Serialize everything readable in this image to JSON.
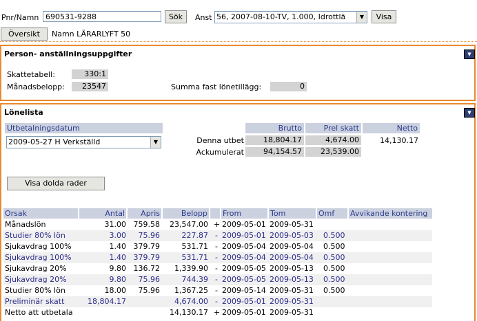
{
  "header": {
    "pnr_label": "Pnr/Namn",
    "pnr_value": "690531-9288",
    "search_button": "Sök",
    "anst_label": "Anst",
    "anst_value": "56, 2007-08-10-TV, 1.000, Idrottlä",
    "show_button": "Visa",
    "overview_button": "Översikt",
    "name_text": "Namn LÄRARLYFT 50"
  },
  "person_panel": {
    "title": "Person- anställningsuppgifter",
    "tax_table_label": "Skattetabell:",
    "tax_table_value": "330:1",
    "monthly_label": "Månadsbelopp:",
    "monthly_value": "23547",
    "fixed_label": "Summa fast lönetillägg:",
    "fixed_value": "0"
  },
  "payslip": {
    "title": "Lönelista",
    "date_header": "Utbetalningsdatum",
    "date_value": "2009-05-27 H Verkställd",
    "summary_headers": [
      "Brutto",
      "Prel skatt",
      "Netto"
    ],
    "summary_rows": [
      {
        "label": "Denna utbet",
        "brutto": "18,804.17",
        "prel": "4,674.00",
        "netto": "14,130.17"
      },
      {
        "label": "Ackumulerat",
        "brutto": "94,154.57",
        "prel": "23,539.00",
        "netto": ""
      }
    ],
    "hidden_rows_button": "Visa dolda rader",
    "columns": [
      "Orsak",
      "Antal",
      "Apris",
      "Belopp",
      "",
      "From",
      "Tom",
      "Omf",
      "Avvikande kontering"
    ],
    "rows": [
      {
        "orsak": "Månadslön",
        "antal": "31.00",
        "apris": "759.58",
        "belopp": "23,547.00",
        "sign": "+",
        "from": "2009-05-01",
        "tom": "2009-05-31",
        "omf": ""
      },
      {
        "orsak": "Studier 80% lön",
        "antal": "3.00",
        "apris": "75.96",
        "belopp": "227.87",
        "sign": "-",
        "from": "2009-05-01",
        "tom": "2009-05-03",
        "omf": "0.500"
      },
      {
        "orsak": "Sjukavdrag 100%",
        "antal": "1.40",
        "apris": "379.79",
        "belopp": "531.71",
        "sign": "-",
        "from": "2009-05-04",
        "tom": "2009-05-04",
        "omf": "0.500"
      },
      {
        "orsak": "Sjukavdrag 100%",
        "antal": "1.40",
        "apris": "379.79",
        "belopp": "531.71",
        "sign": "-",
        "from": "2009-05-04",
        "tom": "2009-05-04",
        "omf": "0.500"
      },
      {
        "orsak": "Sjukavdrag 20%",
        "antal": "9.80",
        "apris": "136.72",
        "belopp": "1,339.90",
        "sign": "-",
        "from": "2009-05-05",
        "tom": "2009-05-13",
        "omf": "0.500"
      },
      {
        "orsak": "Sjukavdrag 20%",
        "antal": "9.80",
        "apris": "75.96",
        "belopp": "744.39",
        "sign": "-",
        "from": "2009-05-05",
        "tom": "2009-05-13",
        "omf": "0.500"
      },
      {
        "orsak": "Studier 80% lön",
        "antal": "18.00",
        "apris": "75.96",
        "belopp": "1,367.25",
        "sign": "-",
        "from": "2009-05-14",
        "tom": "2009-05-31",
        "omf": "0.500"
      },
      {
        "orsak": "Preliminär skatt",
        "antal": "18,804.17",
        "apris": "",
        "belopp": "4,674.00",
        "sign": "-",
        "from": "2009-05-01",
        "tom": "2009-05-31",
        "omf": ""
      },
      {
        "orsak": "Netto att utbetala",
        "antal": "",
        "apris": "",
        "belopp": "14,130.17",
        "sign": "+",
        "from": "2009-05-01",
        "tom": "2009-05-31",
        "omf": ""
      }
    ]
  },
  "colors": {
    "accent_border": "#e98a2c",
    "header_bg": "#ccd1e0",
    "header_text": "#2a3a8a"
  }
}
